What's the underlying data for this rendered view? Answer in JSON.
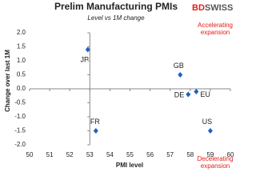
{
  "chart_data": {
    "type": "scatter",
    "title": "Prelim Manufacturing PMIs",
    "subtitle": "Level vs 1M change",
    "logo": [
      "BD",
      "SWISS"
    ],
    "x_label": "PMI level",
    "y_label": "Change over last 1M",
    "point_labels": [
      "JP",
      "GB",
      "DE",
      "EU",
      "FR",
      "US"
    ],
    "x": [
      52.9,
      57.5,
      57.9,
      58.3,
      53.3,
      59.0
    ],
    "values": [
      1.4,
      0.5,
      -0.2,
      -0.1,
      -1.5,
      -1.5
    ],
    "color": "#1f5fc4",
    "xlim": [
      50,
      60
    ],
    "xticks": [
      50,
      51,
      52,
      53,
      54,
      55,
      56,
      57,
      58,
      59,
      60
    ],
    "ylim": [
      -2,
      2
    ],
    "yticks": [
      {
        "value": -2,
        "label": "-2.0"
      },
      -1.5,
      {
        "value": -1,
        "label": "-1.0"
      },
      -0.5,
      {
        "value": 0,
        "label": "0.0"
      },
      0.5,
      {
        "value": 1,
        "label": "1.0"
      },
      1.5,
      {
        "value": 2,
        "label": "2.0"
      }
    ],
    "axis_cross": {
      "x": 53,
      "y": 0
    },
    "annotations": [
      {
        "text": "Accelerating expansion",
        "color": "#e0201b"
      },
      {
        "text": "Decelerating expansion",
        "color": "#e0201b"
      }
    ]
  }
}
